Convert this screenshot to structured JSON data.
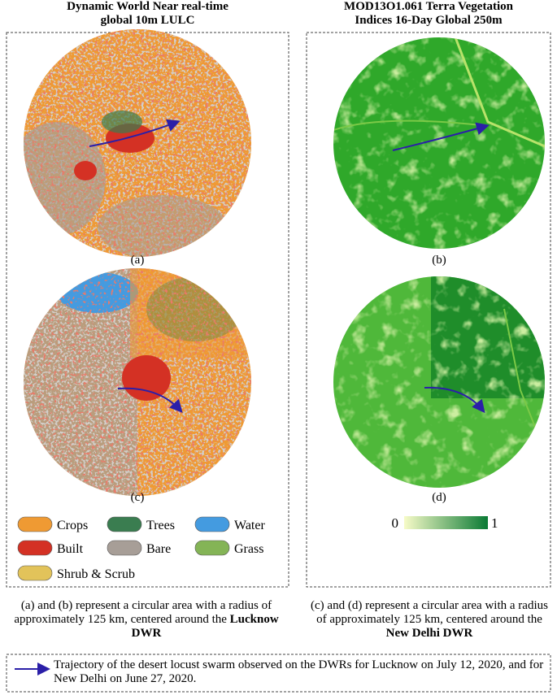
{
  "left_panel": {
    "title_lines": [
      "Dynamic World Near real-time",
      "global 10m LULC"
    ],
    "labels": [
      "(a)",
      "(c)"
    ],
    "legend": [
      {
        "label": "Crops",
        "color": "#ef9a33"
      },
      {
        "label": "Trees",
        "color": "#3a7d50"
      },
      {
        "label": "Water",
        "color": "#449be0"
      },
      {
        "label": "Built",
        "color": "#d43124"
      },
      {
        "label": "Bare",
        "color": "#a79e97"
      },
      {
        "label": "Grass",
        "color": "#84b456"
      },
      {
        "label": "Shrub & Scrub",
        "color": "#e2c35a"
      }
    ]
  },
  "right_panel": {
    "title_lines": [
      "MOD13O1.061 Terra Vegetation",
      "Indices 16-Day Global 250m"
    ],
    "labels": [
      "(b)",
      "(d)"
    ],
    "colorbar": {
      "min": 0,
      "max": 1,
      "colors": [
        "#f7fbc8",
        "#0a7a34"
      ]
    }
  },
  "captions": {
    "left": {
      "text": "(a) and (b) represent a circular area with a radius of approximately 125 km, centered around the",
      "bold": "Lucknow DWR"
    },
    "right": {
      "text": "(c) and (d) represent a circular area with a radius of approximately 125 km, centered around the",
      "bold": "New Delhi DWR"
    }
  },
  "footer": {
    "text": "Trajectory of the desert locust swarm observed on the DWRs for Lucknow on July 12, 2020, and for New Delhi on June 27, 2020."
  }
}
